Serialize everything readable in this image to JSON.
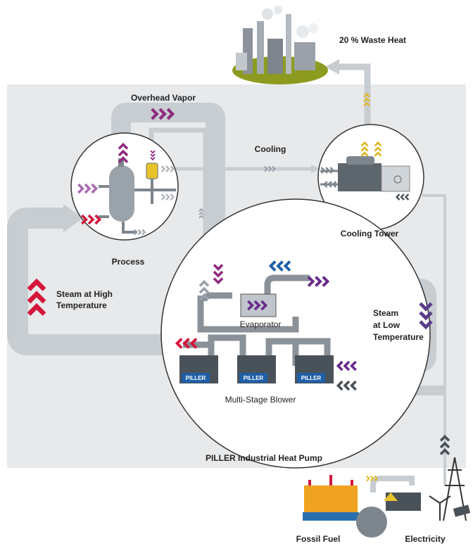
{
  "waste_heat": "20 % Waste Heat",
  "overhead_vapor": "Overhead Vapor",
  "cooling": "Cooling",
  "process": "Process",
  "cooling_tower": "Cooling Tower",
  "steam_high": [
    "Steam at High",
    "Temperature"
  ],
  "evaporator": "Evaporator",
  "steam_low": [
    "Steam",
    "at Low",
    "Temperature"
  ],
  "blower_badges": [
    "PILLER",
    "PILLER",
    "PILLER"
  ],
  "multi_stage_blower": "Multi-Stage Blower",
  "heat_pump": "PILLER Industrial Heat Pump",
  "fossil_fuel": "Fossil Fuel",
  "electricity": "Electricity"
}
